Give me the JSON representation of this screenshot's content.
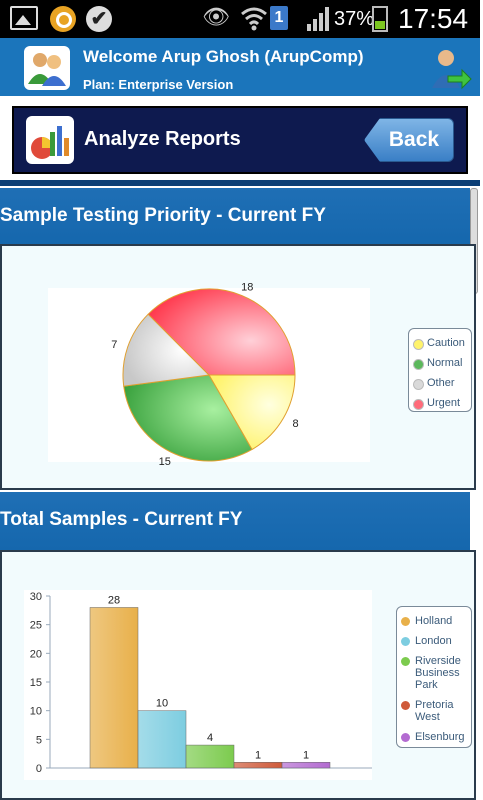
{
  "status_bar": {
    "battery_percent": "37%",
    "time": "17:54",
    "sim_label": "1"
  },
  "header": {
    "title": "Welcome Arup Ghosh (ArupComp)",
    "plan": "Plan: Enterprise Version"
  },
  "report_bar": {
    "title": "Analyze Reports",
    "back_label": "Back"
  },
  "sections": [
    {
      "title": "Sample Testing Priority - Current FY"
    },
    {
      "title": "Total Samples - Current FY"
    }
  ],
  "chart_data": [
    {
      "type": "pie",
      "labels": [
        "Caution",
        "Normal",
        "Other",
        "Urgent"
      ],
      "values": [
        8,
        15,
        7,
        18
      ],
      "colors": [
        "#fff36b",
        "#5cb85c",
        "#d9d9d9",
        "#ff6b7a"
      ],
      "legend": "right"
    },
    {
      "type": "bar",
      "categories": [
        "Holland",
        "London",
        "Riverside Business Park",
        "Pretoria West",
        "Elsenburg"
      ],
      "values": [
        28,
        10,
        4,
        1,
        1
      ],
      "colors": [
        "#e8b04a",
        "#7dcde0",
        "#7ccb4e",
        "#cf5a3a",
        "#b36bd1"
      ],
      "ylim": [
        0,
        30
      ],
      "yticks": [
        0,
        5,
        10,
        15,
        20,
        25,
        30
      ],
      "legend": "right"
    }
  ]
}
